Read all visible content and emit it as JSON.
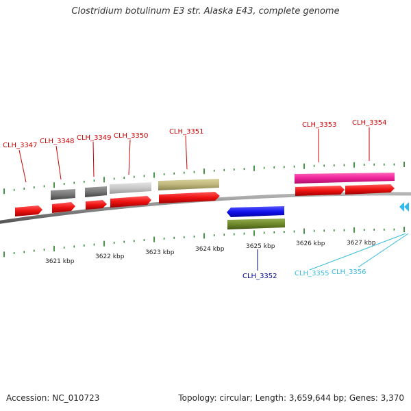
{
  "title": "Clostridium botulinum E3 str. Alaska E43, complete genome",
  "footer": {
    "accession": "Accession: NC_010723",
    "summary": "Topology: circular; Length: 3,659,644 bp; Genes: 3,370"
  },
  "axis": {
    "ticks": [
      "3621 kbp",
      "3622 kbp",
      "3623 kbp",
      "3624 kbp",
      "3625 kbp",
      "3626 kbp",
      "3627 kbp"
    ]
  },
  "genes": [
    {
      "id": "CLH_3347",
      "strand": "+",
      "label_color": "#cc0000"
    },
    {
      "id": "CLH_3348",
      "strand": "+",
      "label_color": "#cc0000"
    },
    {
      "id": "CLH_3349",
      "strand": "+",
      "label_color": "#cc0000"
    },
    {
      "id": "CLH_3350",
      "strand": "+",
      "label_color": "#cc0000"
    },
    {
      "id": "CLH_3351",
      "strand": "+",
      "label_color": "#cc0000"
    },
    {
      "id": "CLH_3352",
      "strand": "-",
      "label_color": "#000099"
    },
    {
      "id": "CLH_3353",
      "strand": "+",
      "label_color": "#cc0000"
    },
    {
      "id": "CLH_3354",
      "strand": "+",
      "label_color": "#cc0000"
    },
    {
      "id": "CLH_3355",
      "strand": "-",
      "label_color": "#33bbdd"
    },
    {
      "id": "CLH_3356",
      "strand": "-",
      "label_color": "#33bbdd"
    }
  ],
  "colors": {
    "cds_forward": "#ee1111",
    "cds_reverse": "#1111ee",
    "gene_gray": "#777777",
    "gene_light_gray": "#c8c8c8",
    "gene_khaki": "#bdb57a",
    "gene_pink": "#ee2299",
    "gene_olive": "#6f8a2a",
    "backbone": "#8a8a8a",
    "tick": "#1a7a1a",
    "arrowhead_cyan": "#33bbee"
  }
}
